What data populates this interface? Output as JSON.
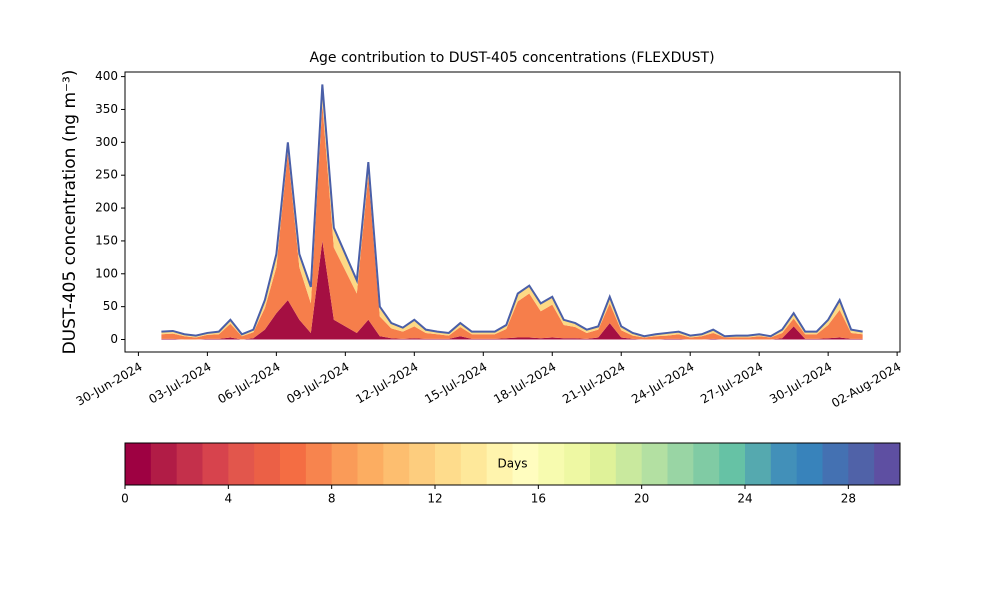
{
  "chart_data": {
    "type": "stacked_area",
    "title": "Age contribution to DUST-405 concentrations (FLEXDUST)",
    "y_label": "DUST-405 concentration (ng m⁻³)",
    "x": [
      "2024-07-01T00:00",
      "2024-07-01T12:00",
      "2024-07-02T00:00",
      "2024-07-02T12:00",
      "2024-07-03T00:00",
      "2024-07-03T12:00",
      "2024-07-04T00:00",
      "2024-07-04T12:00",
      "2024-07-05T00:00",
      "2024-07-05T12:00",
      "2024-07-06T00:00",
      "2024-07-06T12:00",
      "2024-07-07T00:00",
      "2024-07-07T12:00",
      "2024-07-08T00:00",
      "2024-07-08T12:00",
      "2024-07-09T00:00",
      "2024-07-09T12:00",
      "2024-07-10T00:00",
      "2024-07-10T12:00",
      "2024-07-11T00:00",
      "2024-07-11T12:00",
      "2024-07-12T00:00",
      "2024-07-12T12:00",
      "2024-07-13T00:00",
      "2024-07-13T12:00",
      "2024-07-14T00:00",
      "2024-07-14T12:00",
      "2024-07-15T00:00",
      "2024-07-15T12:00",
      "2024-07-16T00:00",
      "2024-07-16T12:00",
      "2024-07-17T00:00",
      "2024-07-17T12:00",
      "2024-07-18T00:00",
      "2024-07-18T12:00",
      "2024-07-19T00:00",
      "2024-07-19T12:00",
      "2024-07-20T00:00",
      "2024-07-20T12:00",
      "2024-07-21T00:00",
      "2024-07-21T12:00",
      "2024-07-22T00:00",
      "2024-07-22T12:00",
      "2024-07-23T00:00",
      "2024-07-23T12:00",
      "2024-07-24T00:00",
      "2024-07-24T12:00",
      "2024-07-25T00:00",
      "2024-07-25T12:00",
      "2024-07-26T00:00",
      "2024-07-26T12:00",
      "2024-07-27T00:00",
      "2024-07-27T12:00",
      "2024-07-28T00:00",
      "2024-07-28T12:00",
      "2024-07-29T00:00",
      "2024-07-29T12:00",
      "2024-07-30T00:00",
      "2024-07-30T12:00",
      "2024-07-31T00:00",
      "2024-07-31T12:00"
    ],
    "series": [
      {
        "color": "#a50f42",
        "values": [
          1,
          1,
          0,
          0,
          1,
          1,
          3,
          0,
          2,
          15,
          40,
          60,
          30,
          10,
          150,
          30,
          20,
          10,
          30,
          5,
          2,
          1,
          2,
          1,
          1,
          1,
          5,
          1,
          1,
          1,
          2,
          3,
          3,
          2,
          3,
          2,
          2,
          1,
          3,
          25,
          3,
          1,
          0,
          0,
          1,
          1,
          0,
          0,
          1,
          0,
          0,
          0,
          0,
          0,
          2,
          20,
          1,
          1,
          2,
          3,
          1,
          1
        ]
      },
      {
        "color": "#f67e4b",
        "values": [
          7,
          8,
          5,
          3,
          6,
          7,
          21,
          5,
          9,
          33,
          70,
          225,
          80,
          45,
          208,
          110,
          85,
          60,
          220,
          30,
          15,
          11,
          18,
          9,
          7,
          5,
          14,
          7,
          7,
          7,
          14,
          55,
          67,
          41,
          50,
          20,
          17,
          9,
          12,
          30,
          11,
          5,
          3,
          5,
          5,
          7,
          3,
          5,
          9,
          3,
          3,
          3,
          5,
          3,
          8,
          12,
          7,
          7,
          20,
          42,
          9,
          7
        ]
      },
      {
        "color": "#fdd985",
        "values": [
          4,
          4,
          3,
          3,
          3,
          4,
          6,
          3,
          4,
          12,
          20,
          15,
          20,
          25,
          30,
          30,
          25,
          20,
          20,
          15,
          8,
          6,
          10,
          5,
          4,
          4,
          6,
          4,
          4,
          4,
          6,
          12,
          12,
          12,
          12,
          8,
          6,
          5,
          5,
          10,
          6,
          4,
          2,
          3,
          4,
          4,
          3,
          3,
          5,
          2,
          3,
          3,
          3,
          2,
          5,
          8,
          4,
          4,
          8,
          15,
          5,
          4
        ]
      }
    ],
    "line": {
      "color": "#4a5fa8",
      "values": [
        12,
        13,
        8,
        6,
        10,
        12,
        30,
        8,
        15,
        60,
        130,
        300,
        130,
        80,
        388,
        170,
        130,
        90,
        270,
        50,
        25,
        18,
        30,
        15,
        12,
        10,
        25,
        12,
        12,
        12,
        22,
        70,
        82,
        55,
        65,
        30,
        25,
        15,
        20,
        65,
        20,
        10,
        5,
        8,
        10,
        12,
        6,
        8,
        15,
        5,
        6,
        6,
        8,
        5,
        15,
        40,
        12,
        12,
        30,
        60,
        15,
        12
      ]
    },
    "xlim": [
      "2024-06-29T10:00",
      "2024-08-02T03:00"
    ],
    "xticks": [
      {
        "value": "2024-06-30",
        "label": "30-Jun-2024"
      },
      {
        "value": "2024-07-03",
        "label": "03-Jul-2024"
      },
      {
        "value": "2024-07-06",
        "label": "06-Jul-2024"
      },
      {
        "value": "2024-07-09",
        "label": "09-Jul-2024"
      },
      {
        "value": "2024-07-12",
        "label": "12-Jul-2024"
      },
      {
        "value": "2024-07-15",
        "label": "15-Jul-2024"
      },
      {
        "value": "2024-07-18",
        "label": "18-Jul-2024"
      },
      {
        "value": "2024-07-21",
        "label": "21-Jul-2024"
      },
      {
        "value": "2024-07-24",
        "label": "24-Jul-2024"
      },
      {
        "value": "2024-07-27",
        "label": "27-Jul-2024"
      },
      {
        "value": "2024-07-30",
        "label": "30-Jul-2024"
      },
      {
        "value": "2024-08-02",
        "label": "02-Aug-2024"
      }
    ],
    "ylim": [
      -19,
      407
    ],
    "yticks": [
      0,
      50,
      100,
      150,
      200,
      250,
      300,
      350,
      400
    ],
    "colorbar": {
      "label": "Days",
      "lim": [
        0,
        30
      ],
      "ticks": [
        0,
        4,
        8,
        12,
        16,
        20,
        24,
        28
      ],
      "colors": [
        "#9e0142",
        "#b11c46",
        "#c4304b",
        "#d7434d",
        "#e2564c",
        "#eb6046",
        "#f46d43",
        "#f7844e",
        "#fa9b58",
        "#fcad61",
        "#fdbe6f",
        "#fdcd7e",
        "#fedc8c",
        "#fee89a",
        "#fff4ad",
        "#fffdbf",
        "#f7fbaf",
        "#eef8a3",
        "#dff299",
        "#c9e99e",
        "#b3e0a2",
        "#99d5a4",
        "#80cba4",
        "#66c2a5",
        "#55a9af",
        "#4290b9",
        "#3883bb",
        "#4471b2",
        "#5062a8",
        "#5e4fa2"
      ]
    }
  }
}
